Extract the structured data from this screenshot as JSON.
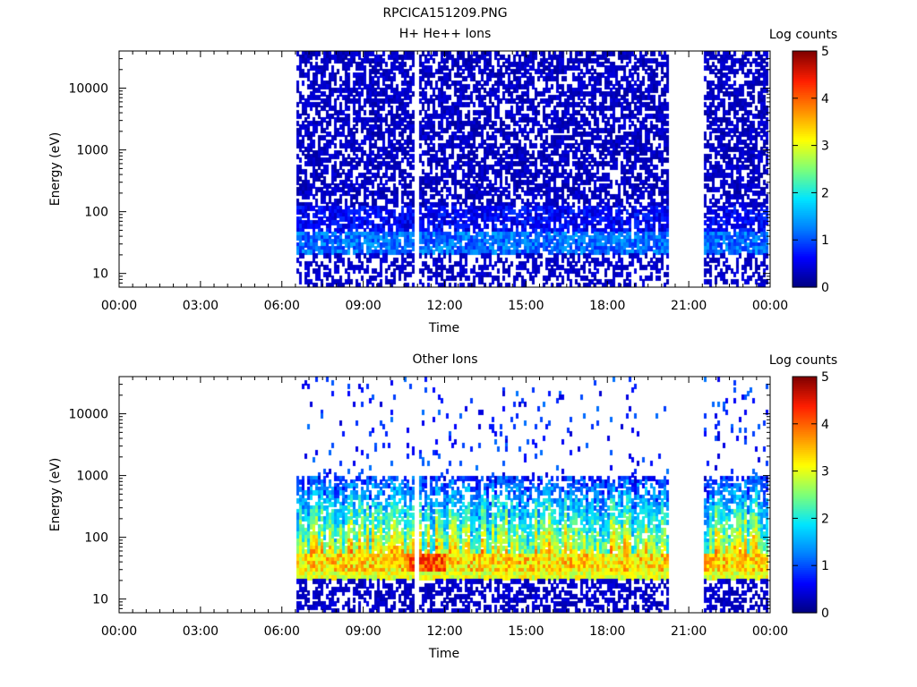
{
  "figure_title": "RPCICA151209.PNG",
  "colormap": [
    "#00007f",
    "#0000ff",
    "#0080ff",
    "#00e5ff",
    "#7cff79",
    "#ffff00",
    "#ff8c00",
    "#ff1e00",
    "#800000"
  ],
  "chart_data": [
    {
      "type": "heatmap",
      "title": "H+ He++ Ions",
      "xlabel": "Time",
      "ylabel": "Energy (eV)",
      "x_ticks": [
        "00:00",
        "03:00",
        "06:00",
        "09:00",
        "12:00",
        "15:00",
        "18:00",
        "21:00",
        "00:00"
      ],
      "x_range_hours": [
        0,
        24
      ],
      "y_scale": "log",
      "y_range": [
        6,
        40000
      ],
      "y_ticks": [
        10,
        100,
        1000,
        10000
      ],
      "y_tick_labels": [
        "10",
        "100",
        "1000",
        "10000"
      ],
      "colorbar_label": "Log counts",
      "colorbar_range": [
        0,
        5
      ],
      "colorbar_ticks": [
        "0",
        "1",
        "2",
        "3",
        "4",
        "5"
      ],
      "data_intervals_hours": [
        [
          6.55,
          10.9
        ],
        [
          11.05,
          20.2
        ],
        [
          21.55,
          23.95
        ]
      ],
      "description_levels": {
        "low_energy_band_eV": [
          22,
          50
        ],
        "low_energy_band_log_counts": 1.3,
        "background_log_counts": 0.4
      }
    },
    {
      "type": "heatmap",
      "title": "Other Ions",
      "xlabel": "Time",
      "ylabel": "Energy (eV)",
      "x_ticks": [
        "00:00",
        "03:00",
        "06:00",
        "09:00",
        "12:00",
        "15:00",
        "18:00",
        "21:00",
        "00:00"
      ],
      "x_range_hours": [
        0,
        24
      ],
      "y_scale": "log",
      "y_range": [
        6,
        40000
      ],
      "y_ticks": [
        10,
        100,
        1000,
        10000
      ],
      "y_tick_labels": [
        "10",
        "100",
        "1000",
        "10000"
      ],
      "colorbar_label": "Log counts",
      "colorbar_range": [
        0,
        5
      ],
      "colorbar_ticks": [
        "0",
        "1",
        "2",
        "3",
        "4",
        "5"
      ],
      "data_intervals_hours": [
        [
          6.55,
          10.9
        ],
        [
          11.05,
          20.2
        ],
        [
          21.55,
          23.95
        ]
      ],
      "description_levels": {
        "peak_band_eV": [
          28,
          55
        ],
        "peak_band_log_counts": 3.4,
        "peak_max_log_counts": 4.5,
        "peak_max_hours": [
          10.5,
          12.0
        ]
      }
    }
  ]
}
